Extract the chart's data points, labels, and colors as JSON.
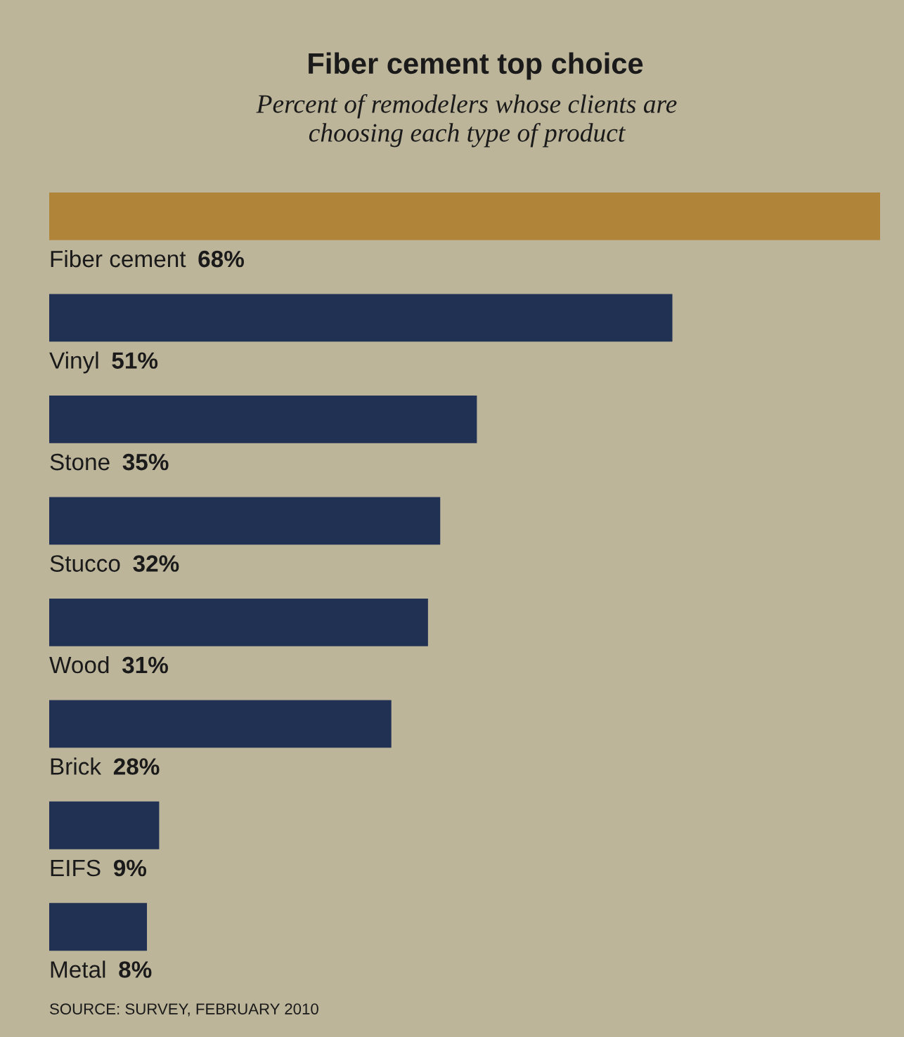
{
  "chart_data": {
    "type": "bar",
    "orientation": "horizontal",
    "title": "Fiber cement top choice",
    "subtitle": "Percent of remodelers whose clients are\nchoosing each type of product",
    "categories": [
      "Fiber cement",
      "Vinyl",
      "Stone",
      "Stucco",
      "Wood",
      "Brick",
      "EIFS",
      "Metal"
    ],
    "values": [
      68,
      51,
      35,
      32,
      31,
      28,
      9,
      8
    ],
    "colors": [
      "#b0853a",
      "#213154",
      "#213154",
      "#213154",
      "#213154",
      "#213154",
      "#213154",
      "#213154"
    ],
    "value_labels": [
      "68%",
      "51%",
      "35%",
      "32%",
      "31%",
      "28%",
      "9%",
      "8%"
    ],
    "annotations": [
      "SOURCE: SURVEY, FEBRUARY 2010"
    ],
    "legend": false
  }
}
